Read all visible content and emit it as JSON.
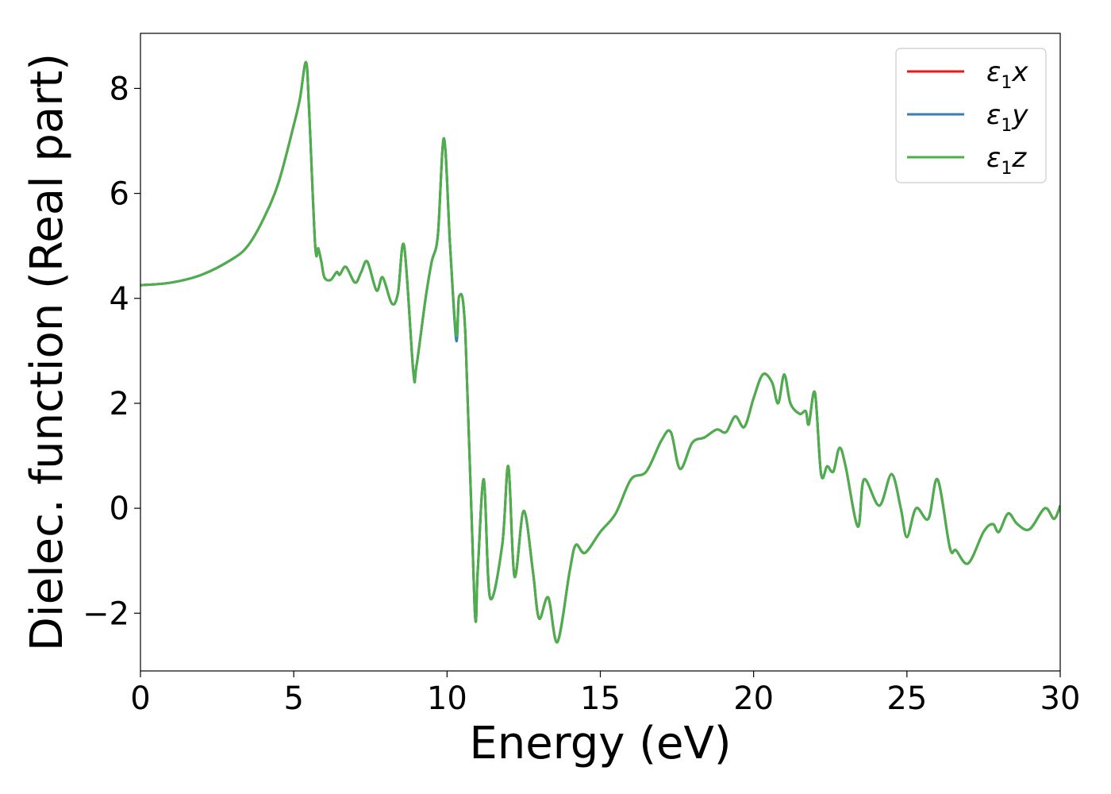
{
  "chart_data": {
    "type": "line",
    "xlabel": "Energy (eV)",
    "ylabel": "Dielec. function (Real part)",
    "xlim": [
      0,
      30
    ],
    "ylim": [
      -3.1,
      9.05
    ],
    "xticks": [
      0,
      5,
      10,
      15,
      20,
      25,
      30
    ],
    "yticks": [
      -2,
      0,
      2,
      4,
      6,
      8
    ],
    "grid": false,
    "legend_position": "top-right",
    "series": [
      {
        "name": "ε1x",
        "color": "#e41a1c",
        "x": [
          0,
          1,
          2,
          3,
          3.5,
          4,
          4.5,
          5,
          5.2,
          5.4,
          5.5,
          5.7,
          5.8,
          5.9,
          6.0,
          6.2,
          6.4,
          6.5,
          6.7,
          7.0,
          7.2,
          7.4,
          7.7,
          7.9,
          8.2,
          8.4,
          8.6,
          8.9,
          9.0,
          9.3,
          9.5,
          9.7,
          9.9,
          10.1,
          10.3,
          10.4,
          10.6,
          10.9,
          11.0,
          11.2,
          11.4,
          11.8,
          12.0,
          12.2,
          12.5,
          12.8,
          13.0,
          13.3,
          13.6,
          14.0,
          14.2,
          14.5,
          15.0,
          15.5,
          16.0,
          16.5,
          17.0,
          17.3,
          17.6,
          18.0,
          18.4,
          18.8,
          19.1,
          19.4,
          19.7,
          20.0,
          20.3,
          20.6,
          20.8,
          21.0,
          21.2,
          21.5,
          21.7,
          21.8,
          22.0,
          22.2,
          22.4,
          22.6,
          22.8,
          23.0,
          23.4,
          23.6,
          24.1,
          24.5,
          24.8,
          25.0,
          25.3,
          25.7,
          26.0,
          26.4,
          26.6,
          27.0,
          27.5,
          27.8,
          28.0,
          28.3,
          28.6,
          29.0,
          29.5,
          29.8,
          30.0
        ],
        "y": [
          4.25,
          4.3,
          4.45,
          4.75,
          5.0,
          5.5,
          6.2,
          7.3,
          7.8,
          8.5,
          7.6,
          5.0,
          4.95,
          4.7,
          4.4,
          4.35,
          4.5,
          4.45,
          4.6,
          4.3,
          4.5,
          4.7,
          4.15,
          4.4,
          3.9,
          4.1,
          5.0,
          2.6,
          2.7,
          4.0,
          4.7,
          5.2,
          7.05,
          5.0,
          3.25,
          4.05,
          3.3,
          -1.9,
          -1.2,
          0.55,
          -1.7,
          -0.7,
          0.8,
          -1.3,
          -0.05,
          -1.2,
          -2.1,
          -1.7,
          -2.55,
          -1.2,
          -0.7,
          -0.85,
          -0.45,
          -0.1,
          0.55,
          0.7,
          1.3,
          1.45,
          0.75,
          1.25,
          1.35,
          1.5,
          1.45,
          1.75,
          1.55,
          2.1,
          2.55,
          2.4,
          2.0,
          2.55,
          2.0,
          1.8,
          1.85,
          1.6,
          2.2,
          0.65,
          0.8,
          0.7,
          1.15,
          0.8,
          -0.35,
          0.55,
          0.05,
          0.65,
          0.0,
          -0.55,
          0.0,
          -0.2,
          0.55,
          -0.75,
          -0.8,
          -1.05,
          -0.45,
          -0.3,
          -0.45,
          -0.1,
          -0.3,
          -0.4,
          0.0,
          -0.2,
          0.05
        ]
      },
      {
        "name": "ε1y",
        "color": "#377eb8",
        "x": [
          0,
          1,
          2,
          3,
          3.5,
          4,
          4.5,
          5,
          5.2,
          5.4,
          5.5,
          5.7,
          5.8,
          5.9,
          6.0,
          6.2,
          6.4,
          6.5,
          6.7,
          7.0,
          7.2,
          7.4,
          7.7,
          7.9,
          8.2,
          8.4,
          8.6,
          8.9,
          9.0,
          9.3,
          9.5,
          9.7,
          9.9,
          10.1,
          10.3,
          10.4,
          10.6,
          10.9,
          11.0,
          11.2,
          11.4,
          11.8,
          12.0,
          12.2,
          12.5,
          12.8,
          13.0,
          13.3,
          13.6,
          14.0,
          14.2,
          14.5,
          15.0,
          15.5,
          16.0,
          16.5,
          17.0,
          17.3,
          17.6,
          18.0,
          18.4,
          18.8,
          19.1,
          19.4,
          19.7,
          20.0,
          20.3,
          20.6,
          20.8,
          21.0,
          21.2,
          21.5,
          21.7,
          21.8,
          22.0,
          22.2,
          22.4,
          22.6,
          22.8,
          23.0,
          23.4,
          23.6,
          24.1,
          24.5,
          24.8,
          25.0,
          25.3,
          25.7,
          26.0,
          26.4,
          26.6,
          27.0,
          27.5,
          27.8,
          28.0,
          28.3,
          28.6,
          29.0,
          29.5,
          29.8,
          30.0
        ],
        "y": [
          4.25,
          4.3,
          4.45,
          4.75,
          5.0,
          5.5,
          6.2,
          7.3,
          7.8,
          8.5,
          7.6,
          5.0,
          4.95,
          4.7,
          4.4,
          4.35,
          4.5,
          4.45,
          4.6,
          4.3,
          4.5,
          4.7,
          4.15,
          4.4,
          3.9,
          4.1,
          5.0,
          2.6,
          2.7,
          4.0,
          4.7,
          5.2,
          7.05,
          5.0,
          3.2,
          4.05,
          3.3,
          -1.9,
          -1.2,
          0.55,
          -1.7,
          -0.7,
          0.8,
          -1.3,
          -0.05,
          -1.2,
          -2.1,
          -1.7,
          -2.55,
          -1.2,
          -0.7,
          -0.85,
          -0.45,
          -0.1,
          0.55,
          0.7,
          1.3,
          1.45,
          0.75,
          1.25,
          1.35,
          1.5,
          1.45,
          1.75,
          1.55,
          2.1,
          2.55,
          2.4,
          2.0,
          2.55,
          2.0,
          1.8,
          1.85,
          1.6,
          2.2,
          0.65,
          0.8,
          0.7,
          1.15,
          0.8,
          -0.35,
          0.55,
          0.05,
          0.65,
          0.0,
          -0.55,
          0.0,
          -0.2,
          0.55,
          -0.75,
          -0.8,
          -1.05,
          -0.45,
          -0.3,
          -0.45,
          -0.1,
          -0.3,
          -0.4,
          0.0,
          -0.2,
          0.05
        ]
      },
      {
        "name": "ε1z",
        "color": "#4daf4a",
        "x": [
          0,
          1,
          2,
          3,
          3.5,
          4,
          4.5,
          5,
          5.2,
          5.4,
          5.5,
          5.7,
          5.8,
          5.9,
          6.0,
          6.2,
          6.4,
          6.5,
          6.7,
          7.0,
          7.2,
          7.4,
          7.7,
          7.9,
          8.2,
          8.4,
          8.6,
          8.9,
          9.0,
          9.3,
          9.5,
          9.7,
          9.9,
          10.1,
          10.3,
          10.4,
          10.6,
          10.9,
          11.0,
          11.2,
          11.4,
          11.8,
          12.0,
          12.2,
          12.5,
          12.8,
          13.0,
          13.3,
          13.6,
          14.0,
          14.2,
          14.5,
          15.0,
          15.5,
          16.0,
          16.5,
          17.0,
          17.3,
          17.6,
          18.0,
          18.4,
          18.8,
          19.1,
          19.4,
          19.7,
          20.0,
          20.3,
          20.6,
          20.8,
          21.0,
          21.2,
          21.5,
          21.7,
          21.8,
          22.0,
          22.2,
          22.4,
          22.6,
          22.8,
          23.0,
          23.4,
          23.6,
          24.1,
          24.5,
          24.8,
          25.0,
          25.3,
          25.7,
          26.0,
          26.4,
          26.6,
          27.0,
          27.5,
          27.8,
          28.0,
          28.3,
          28.6,
          29.0,
          29.5,
          29.8,
          30.0
        ],
        "y": [
          4.25,
          4.3,
          4.45,
          4.75,
          5.0,
          5.5,
          6.2,
          7.3,
          7.8,
          8.5,
          7.6,
          5.0,
          4.95,
          4.7,
          4.4,
          4.35,
          4.5,
          4.45,
          4.6,
          4.3,
          4.5,
          4.7,
          4.15,
          4.4,
          3.9,
          4.1,
          5.0,
          2.6,
          2.7,
          4.0,
          4.7,
          5.2,
          7.05,
          5.0,
          3.3,
          4.05,
          3.3,
          -1.9,
          -1.2,
          0.55,
          -1.7,
          -0.7,
          0.8,
          -1.3,
          -0.05,
          -1.2,
          -2.1,
          -1.7,
          -2.55,
          -1.2,
          -0.7,
          -0.85,
          -0.45,
          -0.1,
          0.55,
          0.7,
          1.3,
          1.45,
          0.75,
          1.25,
          1.35,
          1.5,
          1.45,
          1.75,
          1.55,
          2.1,
          2.55,
          2.4,
          2.0,
          2.55,
          2.0,
          1.8,
          1.85,
          1.6,
          2.2,
          0.65,
          0.8,
          0.7,
          1.15,
          0.8,
          -0.35,
          0.55,
          0.05,
          0.65,
          0.0,
          -0.55,
          0.0,
          -0.2,
          0.55,
          -0.75,
          -0.8,
          -1.05,
          -0.45,
          -0.3,
          -0.45,
          -0.1,
          -0.3,
          -0.4,
          0.0,
          -0.2,
          0.05
        ]
      }
    ]
  }
}
